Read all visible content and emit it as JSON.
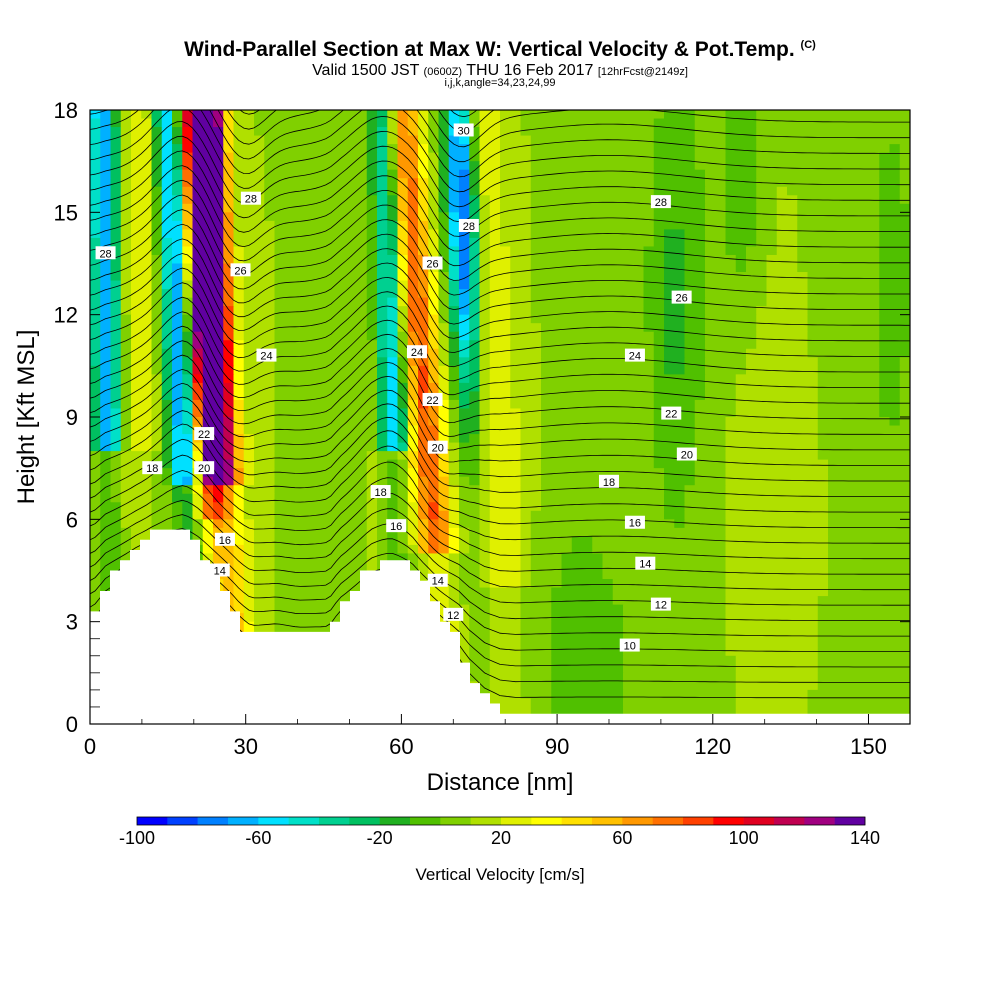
{
  "title": {
    "main": "Wind-Parallel Section at Max W: Vertical Velocity & Pot.Temp.",
    "copyright": "(C)",
    "valid_a": "Valid 1500 JST",
    "valid_z": "(0600Z)",
    "valid_b": "THU 16 Feb 2017",
    "fcst": "[12hrFcst@2149z]",
    "indices": "i,j,k,angle=34,23,24,99"
  },
  "chart_data": {
    "type": "heatmap",
    "xlabel": "Distance [nm]",
    "ylabel": "Height [Kft MSL]",
    "xlim": [
      0,
      158
    ],
    "ylim": [
      0,
      18
    ],
    "x_ticks": [
      0,
      30,
      60,
      90,
      120,
      150
    ],
    "y_ticks": [
      0,
      3,
      6,
      9,
      12,
      15,
      18
    ],
    "colorbar": {
      "title": "Vertical Velocity [cm/s]",
      "min": -100,
      "max": 140,
      "step": 10,
      "tick_values": [
        -100,
        -60,
        -20,
        20,
        60,
        100,
        140
      ],
      "colors": [
        "#0000ff",
        "#0040ff",
        "#0080ff",
        "#00b0ff",
        "#00e0ff",
        "#00e0c8",
        "#00d090",
        "#00c060",
        "#20b020",
        "#50c000",
        "#80d000",
        "#b0e000",
        "#e0f000",
        "#ffff00",
        "#ffe000",
        "#ffc000",
        "#ff9800",
        "#ff7000",
        "#ff4000",
        "#ff0000",
        "#e00020",
        "#c00050",
        "#a00080",
        "#6000a0"
      ]
    },
    "terrain_kft": [
      [
        0,
        3.0
      ],
      [
        1,
        3.2
      ],
      [
        3,
        4.0
      ],
      [
        6,
        4.6
      ],
      [
        9,
        5.2
      ],
      [
        12,
        5.6
      ],
      [
        15,
        5.8
      ],
      [
        18,
        5.8
      ],
      [
        21,
        5.2
      ],
      [
        24,
        4.4
      ],
      [
        27,
        3.6
      ],
      [
        29,
        3.0
      ],
      [
        31,
        2.6
      ],
      [
        36,
        2.8
      ],
      [
        40,
        2.6
      ],
      [
        46,
        2.6
      ],
      [
        48,
        3.4
      ],
      [
        51,
        4.0
      ],
      [
        54,
        4.6
      ],
      [
        58,
        4.8
      ],
      [
        62,
        4.6
      ],
      [
        65,
        4.0
      ],
      [
        68,
        3.2
      ],
      [
        71,
        2.4
      ],
      [
        73,
        1.6
      ],
      [
        76,
        0.8
      ],
      [
        79,
        0.4
      ],
      [
        82,
        0.3
      ],
      [
        85,
        0.3
      ]
    ],
    "theta_labels": [
      {
        "text": "30",
        "x": 72,
        "y": 17.4
      },
      {
        "text": "28",
        "x": 3,
        "y": 13.8
      },
      {
        "text": "28",
        "x": 31,
        "y": 15.4
      },
      {
        "text": "28",
        "x": 73,
        "y": 14.6
      },
      {
        "text": "28",
        "x": 110,
        "y": 15.3
      },
      {
        "text": "26",
        "x": 29,
        "y": 13.3
      },
      {
        "text": "26",
        "x": 66,
        "y": 13.5
      },
      {
        "text": "26",
        "x": 114,
        "y": 12.5
      },
      {
        "text": "24",
        "x": 34,
        "y": 10.8
      },
      {
        "text": "24",
        "x": 63,
        "y": 10.9
      },
      {
        "text": "24",
        "x": 105,
        "y": 10.8
      },
      {
        "text": "22",
        "x": 22,
        "y": 8.5
      },
      {
        "text": "22",
        "x": 66,
        "y": 9.5
      },
      {
        "text": "22",
        "x": 112,
        "y": 9.1
      },
      {
        "text": "20",
        "x": 22,
        "y": 7.5
      },
      {
        "text": "20",
        "x": 67,
        "y": 8.1
      },
      {
        "text": "20",
        "x": 115,
        "y": 7.9
      },
      {
        "text": "18",
        "x": 12,
        "y": 7.5
      },
      {
        "text": "18",
        "x": 56,
        "y": 6.8
      },
      {
        "text": "18",
        "x": 100,
        "y": 7.1
      },
      {
        "text": "16",
        "x": 26,
        "y": 5.4
      },
      {
        "text": "16",
        "x": 59,
        "y": 5.8
      },
      {
        "text": "16",
        "x": 105,
        "y": 5.9
      },
      {
        "text": "14",
        "x": 25,
        "y": 4.5
      },
      {
        "text": "14",
        "x": 67,
        "y": 4.2
      },
      {
        "text": "14",
        "x": 107,
        "y": 4.7
      },
      {
        "text": "12",
        "x": 70,
        "y": 3.2
      },
      {
        "text": "12",
        "x": 110,
        "y": 3.5
      },
      {
        "text": "10",
        "x": 104,
        "y": 2.3
      }
    ]
  }
}
